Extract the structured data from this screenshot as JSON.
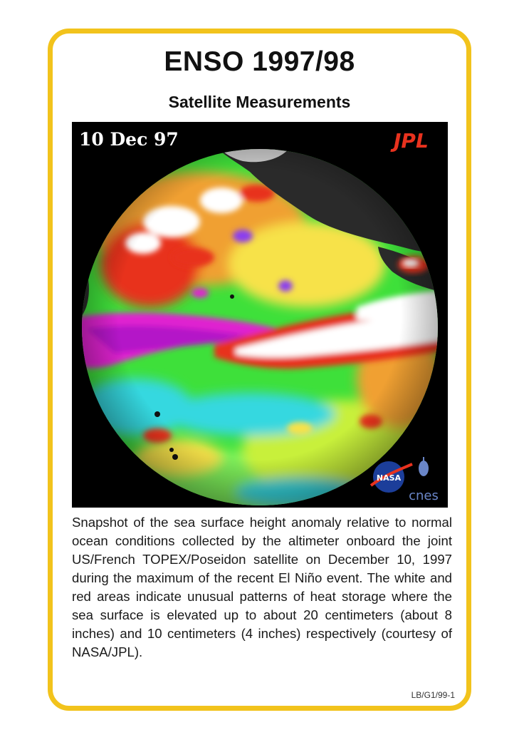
{
  "card": {
    "title": "ENSO 1997/98",
    "subtitle": "Satellite Measurements",
    "image": {
      "date_label": "10 Dec 97",
      "logos": {
        "jpl": "JPL",
        "nasa": "NASA",
        "cnes": "cnes"
      }
    },
    "caption": "Snapshot of the sea surface height anomaly relative to normal ocean conditions collected by the altimeter onboard the joint US/French TOPEX/Poseidon satellite on December 10, 1997 during the maximum of the recent El Niño event. The white and red areas indicate unusual patterns of heat storage where the sea surface is elevated up to about 20 centimeters (about 8 inches) and 10 centimeters (4 inches) respectively (courtesy of NASA/JPL).",
    "code": "LB/G1/99-1"
  },
  "colors": {
    "border": "#f2c31c",
    "anomaly_high": "#ffffff",
    "anomaly_mid": "#e8321e",
    "anomaly_low": "#e024d0",
    "ocean_normal": "#3ee03a",
    "land": "#2a2a2a"
  }
}
